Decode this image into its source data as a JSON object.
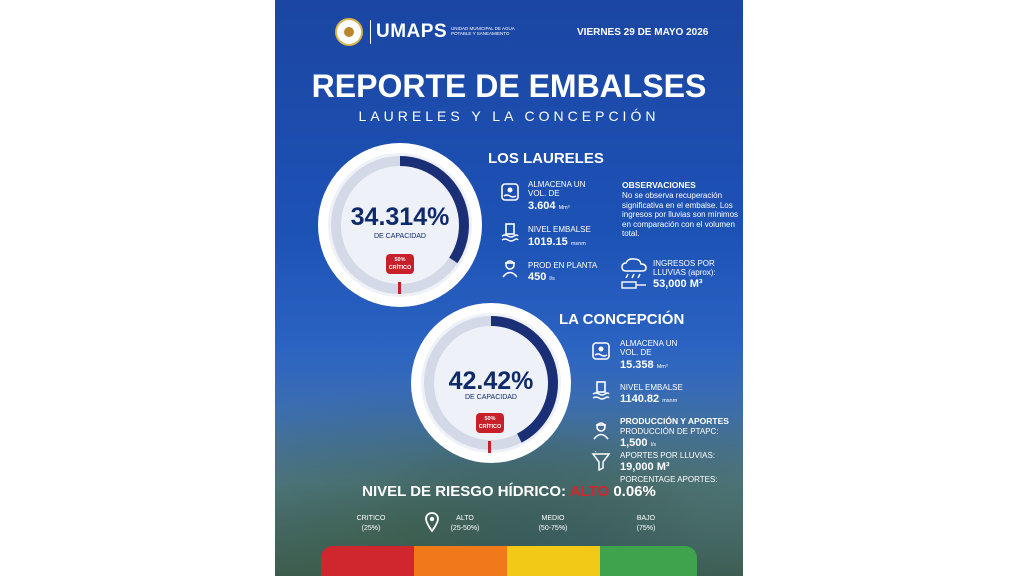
{
  "header": {
    "brand": "UMAPS",
    "brand_sub": "UNIDAD MUNICIPAL DE AGUA POTABLE Y SANEAMIENTO",
    "date": "VIERNES 29 DE MAYO 2026"
  },
  "title": "REPORTE DE EMBALSES",
  "subtitle": "LAURELES Y LA CONCEPCIÓN",
  "laureles": {
    "name": "LOS LAURELES",
    "gauge": {
      "percent_text": "34.314%",
      "percent_value": 34.314,
      "caption": "DE CAPACIDAD",
      "critical_line1": "50%",
      "critical_line2": "CRÍTICO"
    },
    "volume_label": "ALMACENA UN VOL. DE",
    "volume_value": "3.604",
    "volume_unit": "Mm³",
    "level_label": "NIVEL EMBALSE",
    "level_value": "1019.15",
    "level_unit": "msnm",
    "prod_label": "PROD EN PLANTA",
    "prod_value": "450",
    "prod_unit": "l/s",
    "obs_title": "OBSERVACIONES",
    "obs_text": "No se observa recuperación significativa en el embalse. Los ingresos por lluvias son mínimos en comparación con el volumen total.",
    "rain_label": "INGRESOS POR LLUVIAS (aprox):",
    "rain_value": "53,000 M³"
  },
  "concepcion": {
    "name": "LA CONCEPCIÓN",
    "gauge": {
      "percent_text": "42.42%",
      "percent_value": 42.42,
      "caption": "DE CAPACIDAD",
      "critical_line1": "50%",
      "critical_line2": "CRÍTICO"
    },
    "volume_label": "ALMACENA UN VOL. DE",
    "volume_value": "15.358",
    "volume_unit": "Mm³",
    "level_label": "NIVEL EMBALSE",
    "level_value": "1140.82",
    "level_unit": "msnm",
    "prod_title": "PRODUCCIÓN Y APORTES",
    "prod_label": "PRODUCCIÓN DE PTAPC:",
    "prod_value": "1,500",
    "prod_unit": "l/s",
    "rain_label": "APORTES POR LLUVIAS:",
    "rain_value": "19,000 M³",
    "pct_label": "PORCENTAGE APORTES:",
    "pct_value": "0.06%"
  },
  "risk": {
    "label": "NIVEL DE RIESGO HÍDRICO:",
    "level": "ALTO",
    "scale": [
      {
        "name": "CRITICO",
        "range": "(25%)",
        "color": "#d0262e"
      },
      {
        "name": "ALTO",
        "range": "(25-50%)",
        "color": "#f07a1a"
      },
      {
        "name": "MEDIO",
        "range": "(50-75%)",
        "color": "#f2c916"
      },
      {
        "name": "BAJO",
        "range": "(75%)",
        "color": "#3fa34d"
      }
    ]
  },
  "colors": {
    "gauge_arc": "#1a2f75",
    "gauge_track": "#d3d9e6",
    "critical": "#c8202a"
  },
  "icons": [
    "water-volume-icon",
    "water-level-icon",
    "worker-icon",
    "rain-cloud-icon",
    "funnel-icon",
    "umaps-seal-icon"
  ]
}
